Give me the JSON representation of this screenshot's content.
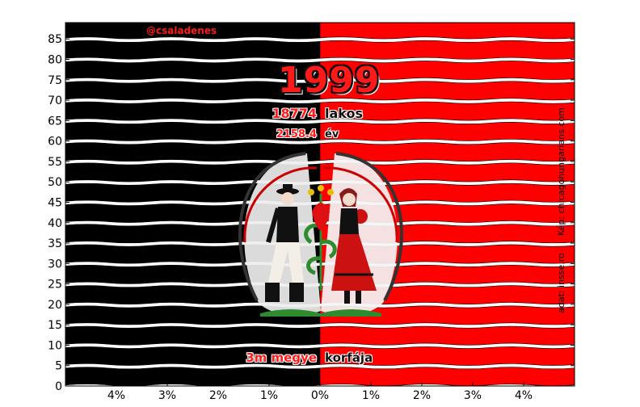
{
  "chart_data": {
    "type": "bar",
    "subtype": "population-pyramid",
    "title": "1999",
    "population": "18774",
    "population_unit": "lakos",
    "mean_age": "2158.4",
    "mean_age_unit": "év",
    "caption_left": "3m megye",
    "caption_right": "korfája",
    "handle": "@csaladenes",
    "credit_image": "Kép: chicagohungarians.com",
    "credit_data": "adat: insse.ro",
    "ages": [
      0,
      5,
      10,
      15,
      20,
      25,
      30,
      35,
      40,
      45,
      50,
      55,
      60,
      65,
      70,
      75,
      80,
      85
    ],
    "y_ticks": [
      "0",
      "5",
      "10",
      "15",
      "20",
      "25",
      "30",
      "35",
      "40",
      "45",
      "50",
      "55",
      "60",
      "65",
      "70",
      "75",
      "80",
      "85"
    ],
    "x_ticks": [
      "4%",
      "3%",
      "2%",
      "1%",
      "0%",
      "1%",
      "2%",
      "3%",
      "4%"
    ],
    "xlim": [
      -5,
      5
    ],
    "ylim": [
      0,
      89
    ],
    "series": [
      {
        "side": "left",
        "color": "#000000",
        "values": [
          5,
          5,
          5,
          5,
          5,
          5,
          5,
          5,
          5,
          5,
          5,
          5,
          5,
          5,
          5,
          5,
          5,
          5
        ]
      },
      {
        "side": "right",
        "color": "#ff0000",
        "values": [
          5,
          5,
          5,
          5,
          5,
          5,
          5,
          5,
          5,
          5,
          5,
          5,
          5,
          5,
          5,
          5,
          5,
          5
        ]
      }
    ],
    "colors": {
      "male": "#000000",
      "female": "#ff0000",
      "accent": "#ff1a1a"
    }
  }
}
